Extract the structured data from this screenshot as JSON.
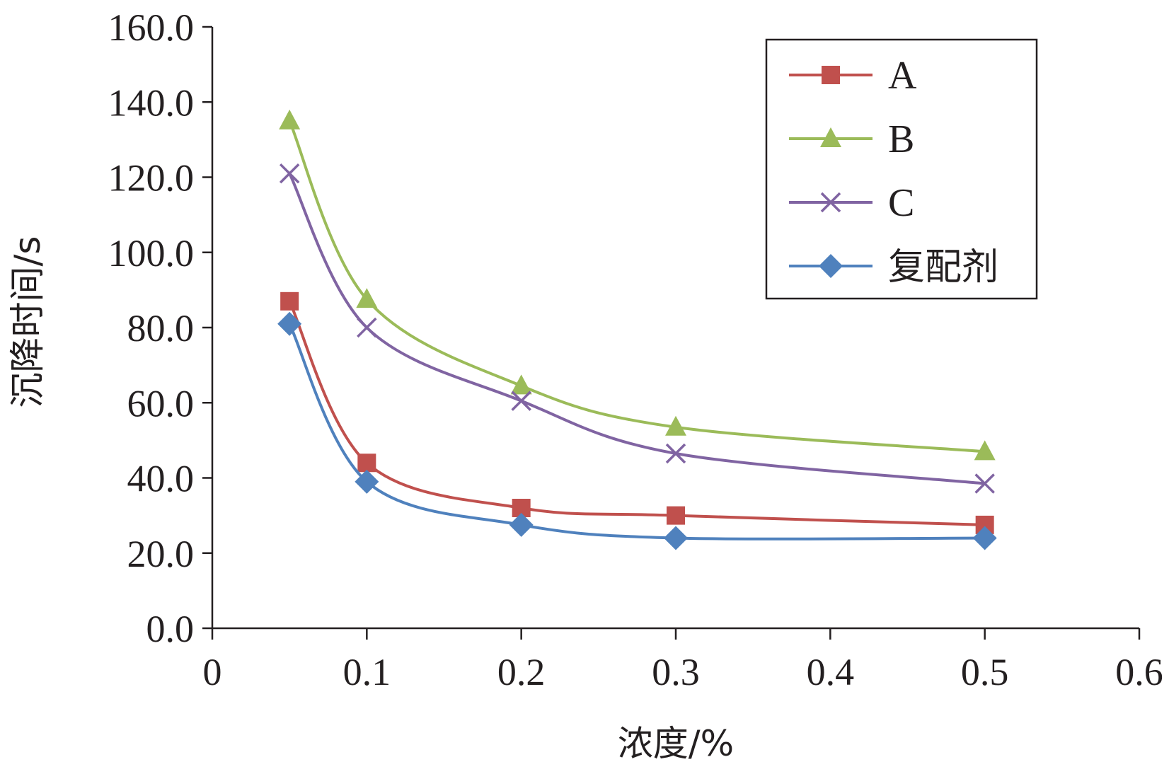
{
  "chart_data": {
    "type": "line",
    "xlabel": "浓度/%",
    "ylabel": "沉降时间/s",
    "xlim": [
      0,
      0.6
    ],
    "ylim": [
      0,
      160
    ],
    "x_ticks": [
      "0",
      "0.1",
      "0.2",
      "0.3",
      "0.4",
      "0.5",
      "0.6"
    ],
    "y_ticks": [
      "0.0",
      "20.0",
      "40.0",
      "60.0",
      "80.0",
      "100.0",
      "120.0",
      "140.0",
      "160.0"
    ],
    "x": [
      0.05,
      0.1,
      0.2,
      0.3,
      0.5
    ],
    "smooth": true,
    "grid": false,
    "legend_position": "top-right",
    "series": [
      {
        "name": "A",
        "color": "#c0504d",
        "marker": "square",
        "values": [
          87,
          44,
          32,
          30,
          27.5
        ]
      },
      {
        "name": "B",
        "color": "#9bbb59",
        "marker": "triangle",
        "values": [
          135,
          87.5,
          64.5,
          53.5,
          47
        ]
      },
      {
        "name": "C",
        "color": "#8064a2",
        "marker": "x",
        "values": [
          121,
          80,
          60.5,
          46.5,
          38.5
        ]
      },
      {
        "name": "复配剂",
        "color": "#4f81bd",
        "marker": "diamond",
        "values": [
          81,
          39,
          27.5,
          24,
          24
        ]
      }
    ]
  }
}
